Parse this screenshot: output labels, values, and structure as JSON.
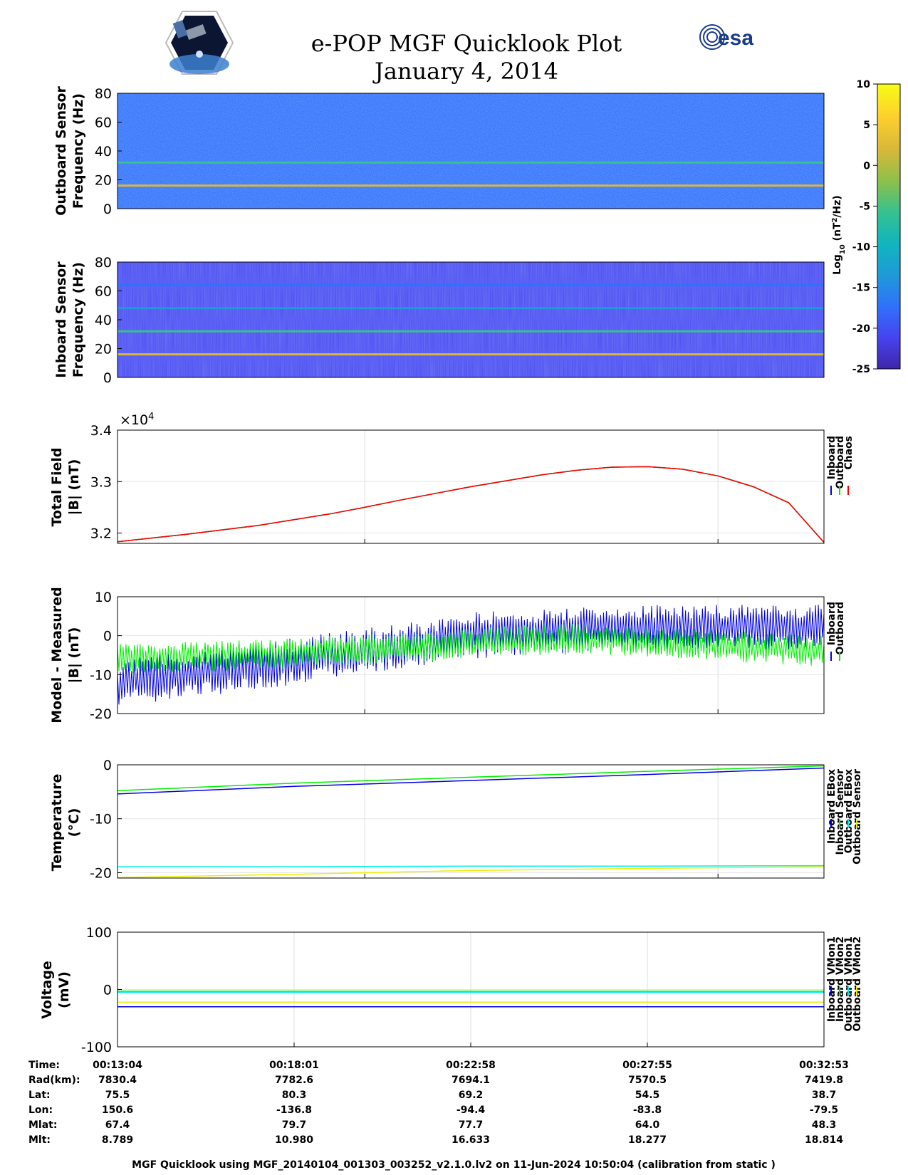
{
  "title": {
    "line1": "e-POP MGF Quicklook Plot",
    "line2": "January 4, 2014"
  },
  "logos": {
    "left": "cassiope-mission-logo",
    "right_text": "esa"
  },
  "colorbar": {
    "label": "Log10 (nT2/Hz)",
    "label_base": "Log",
    "label_sub": "10",
    "label_rest": " (nT",
    "label_sup": "2",
    "label_end": "/Hz)",
    "ticks": [
      "10",
      "5",
      "0",
      "-5",
      "-10",
      "-15",
      "-20",
      "-25"
    ],
    "range": [
      -25,
      10
    ],
    "colormap": [
      "#3e26a8",
      "#4743f0",
      "#2f72fb",
      "#1f9ad6",
      "#11b5be",
      "#36c18f",
      "#8ec04a",
      "#d8b83a",
      "#fcce2e",
      "#f9fb15"
    ]
  },
  "colors": {
    "inboard": "#0000e0",
    "outboard": "#00ee00",
    "chaos": "#ff0000",
    "cyan": "#00eeee",
    "yellow": "#eeee00"
  },
  "chart_data": [
    {
      "type": "heatmap",
      "ylabel": [
        "Outboard Sensor",
        "Frequency (Hz)"
      ],
      "yticks": [
        "80",
        "60",
        "40",
        "20",
        "0"
      ],
      "ylim": [
        0,
        80
      ],
      "background_level": -17,
      "bands": [
        {
          "freq": 16,
          "level": 3
        },
        {
          "freq": 32,
          "level": -7
        }
      ]
    },
    {
      "type": "heatmap",
      "ylabel": [
        "Inboard Sensor",
        "Frequency (Hz)"
      ],
      "yticks": [
        "80",
        "60",
        "40",
        "20",
        "0"
      ],
      "ylim": [
        0,
        80
      ],
      "background_level": -21,
      "bands": [
        {
          "freq": 16,
          "level": 3
        },
        {
          "freq": 32,
          "level": -7
        },
        {
          "freq": 48,
          "level": -13
        },
        {
          "freq": 64,
          "level": -17
        }
      ]
    },
    {
      "type": "line",
      "ylabel": [
        "Total Field",
        "|B| (nT)"
      ],
      "exponent_label": "×10",
      "exponent_sup": "4",
      "yticks": [
        "3.4",
        "3.3",
        "3.2"
      ],
      "ylim": [
        3.18,
        3.4
      ],
      "x": [
        0,
        0.1,
        0.2,
        0.3,
        0.35,
        0.4,
        0.5,
        0.6,
        0.65,
        0.7,
        0.75,
        0.8,
        0.85,
        0.9,
        0.95,
        1.0
      ],
      "series": [
        {
          "name": "Inboard",
          "values": [
            3.183,
            3.198,
            3.215,
            3.237,
            3.25,
            3.264,
            3.29,
            3.313,
            3.322,
            3.328,
            3.329,
            3.324,
            3.311,
            3.29,
            3.259,
            3.182
          ]
        },
        {
          "name": "Outboard",
          "values": [
            3.183,
            3.198,
            3.215,
            3.237,
            3.25,
            3.264,
            3.29,
            3.313,
            3.322,
            3.328,
            3.329,
            3.324,
            3.311,
            3.29,
            3.259,
            3.182
          ]
        },
        {
          "name": "Chaos",
          "values": [
            3.183,
            3.198,
            3.215,
            3.237,
            3.25,
            3.264,
            3.29,
            3.313,
            3.322,
            3.328,
            3.329,
            3.324,
            3.311,
            3.29,
            3.259,
            3.182
          ]
        }
      ]
    },
    {
      "type": "line",
      "ylabel": [
        "Model - Measured",
        "|B| (nT)"
      ],
      "yticks": [
        "10",
        "0",
        "-10",
        "-20"
      ],
      "ylim": [
        -20,
        10
      ],
      "x": [
        0,
        0.1,
        0.2,
        0.3,
        0.4,
        0.5,
        0.6,
        0.7,
        0.8,
        0.9,
        1.0
      ],
      "series": [
        {
          "name": "Inboard",
          "values": [
            -12,
            -10,
            -8,
            -5,
            -3,
            0,
            1,
            2,
            2,
            2,
            2
          ],
          "spread": 6
        },
        {
          "name": "Outboard",
          "values": [
            -6,
            -5.5,
            -5,
            -4,
            -3,
            -2,
            -1,
            -1,
            -2,
            -3,
            -4
          ],
          "spread": 4
        }
      ]
    },
    {
      "type": "line",
      "ylabel": [
        "Temperature",
        "(°C)"
      ],
      "yticks": [
        "0",
        "-10",
        "-20"
      ],
      "ylim": [
        -21,
        0
      ],
      "x": [
        0,
        0.25,
        0.5,
        0.75,
        1.0
      ],
      "series": [
        {
          "name": "Inboard EBox",
          "values": [
            -5.4,
            -4.0,
            -2.9,
            -1.8,
            -0.6
          ]
        },
        {
          "name": "Inboard Sensor",
          "values": [
            -4.8,
            -3.4,
            -2.3,
            -1.2,
            -0.2
          ]
        },
        {
          "name": "Outboard EBox",
          "values": [
            -18.9,
            -18.9,
            -18.8,
            -18.8,
            -18.7
          ]
        },
        {
          "name": "Outboard Sensor",
          "values": [
            -20.9,
            -20.3,
            -19.6,
            -19.2,
            -18.9
          ]
        }
      ]
    },
    {
      "type": "line",
      "ylabel": [
        "Voltage",
        "(mV)"
      ],
      "yticks": [
        "100",
        "0",
        "-100"
      ],
      "ylim": [
        -100,
        100
      ],
      "x": [
        0,
        1.0
      ],
      "series": [
        {
          "name": "Inboard VMon1",
          "values": [
            -30,
            -30
          ]
        },
        {
          "name": "Inboard VMon2",
          "values": [
            -3,
            -3
          ]
        },
        {
          "name": "Outboard VMon1",
          "values": [
            -5,
            -5
          ]
        },
        {
          "name": "Outboard VMon2",
          "values": [
            -22,
            -22
          ]
        }
      ]
    }
  ],
  "ephemeris": {
    "labels": [
      "Time:",
      "Rad(km):",
      "Lat:",
      "Lon:",
      "Mlat:",
      "Mlt:"
    ],
    "columns": [
      {
        "time": "00:13:04",
        "rad": "7830.4",
        "lat": "75.5",
        "lon": "150.6",
        "mlat": "67.4",
        "mlt": "8.789"
      },
      {
        "time": "00:18:01",
        "rad": "7782.6",
        "lat": "80.3",
        "lon": "-136.8",
        "mlat": "79.7",
        "mlt": "10.980"
      },
      {
        "time": "00:22:58",
        "rad": "7694.1",
        "lat": "69.2",
        "lon": "-94.4",
        "mlat": "77.7",
        "mlt": "16.633"
      },
      {
        "time": "00:27:55",
        "rad": "7570.5",
        "lat": "54.5",
        "lon": "-83.8",
        "mlat": "64.0",
        "mlt": "18.277"
      },
      {
        "time": "00:32:53",
        "rad": "7419.8",
        "lat": "38.7",
        "lon": "-79.5",
        "mlat": "48.3",
        "mlt": "18.814"
      }
    ]
  },
  "footer": "MGF Quicklook using MGF_20140104_001303_003252_v2.1.0.lv2 on 11-Jun-2024 10:50:04 (calibration from static )"
}
